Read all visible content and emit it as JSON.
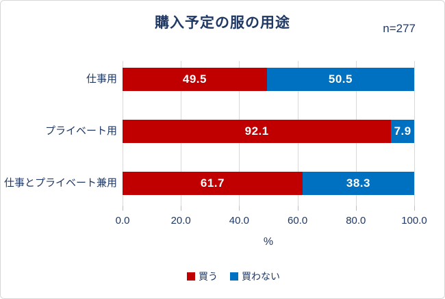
{
  "chart": {
    "title": "購入予定の服の用途",
    "sample_label": "n=277",
    "xlabel": "%"
  },
  "chart_data": {
    "type": "bar",
    "orientation": "horizontal-stacked",
    "title": "購入予定の服の用途",
    "sample_size": "n=277",
    "categories": [
      "仕事用",
      "プライベート用",
      "仕事とプライベート兼用"
    ],
    "series": [
      {
        "name": "買う",
        "color": "#c00000",
        "values": [
          49.5,
          92.1,
          61.7
        ]
      },
      {
        "name": "買わない",
        "color": "#0070c0",
        "values": [
          50.5,
          7.9,
          38.3
        ]
      }
    ],
    "xlabel": "%",
    "xlim": [
      0,
      100
    ],
    "xticks": [
      "0.0",
      "20.0",
      "40.0",
      "60.0",
      "80.0",
      "100.0"
    ],
    "grid": true,
    "legend_position": "bottom",
    "value_label_color": "#ffffff",
    "text_color": "#1f3864",
    "gridline_color": "#d9d9d9"
  }
}
